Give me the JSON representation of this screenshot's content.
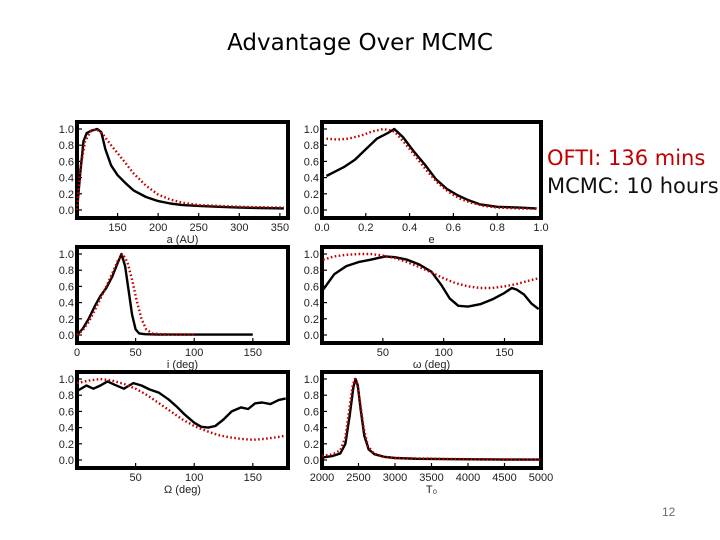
{
  "slide": {
    "title": "Advantage Over MCMC",
    "ofti_time": "OFTI: 136 mins",
    "mcmc_time": "MCMC: 10 hours",
    "page_number": "12"
  },
  "colors": {
    "mcmc": "#000000",
    "ofti": "#c00000"
  },
  "chart_data": [
    {
      "type": "line",
      "xlabel": "a (AU)",
      "xlim": [
        100,
        360
      ],
      "ylim": [
        0,
        1
      ],
      "xticks": [
        150,
        200,
        250,
        300,
        350
      ],
      "yticks": [
        "0.0",
        "0.2",
        "0.4",
        "0.6",
        "0.8",
        "1.0"
      ],
      "series": [
        {
          "style": "solid",
          "points": [
            [
              100,
              0
            ],
            [
              104,
              0.45
            ],
            [
              108,
              0.85
            ],
            [
              112,
              0.95
            ],
            [
              118,
              0.98
            ],
            [
              125,
              1.0
            ],
            [
              130,
              0.96
            ],
            [
              135,
              0.75
            ],
            [
              142,
              0.55
            ],
            [
              150,
              0.43
            ],
            [
              160,
              0.33
            ],
            [
              170,
              0.24
            ],
            [
              185,
              0.16
            ],
            [
              200,
              0.11
            ],
            [
              215,
              0.08
            ],
            [
              230,
              0.06
            ],
            [
              250,
              0.05
            ],
            [
              275,
              0.04
            ],
            [
              300,
              0.03
            ],
            [
              325,
              0.025
            ],
            [
              355,
              0.02
            ]
          ]
        },
        {
          "style": "dotted",
          "points": [
            [
              100,
              0
            ],
            [
              104,
              0.5
            ],
            [
              110,
              0.85
            ],
            [
              117,
              0.97
            ],
            [
              124,
              1.0
            ],
            [
              133,
              0.92
            ],
            [
              142,
              0.8
            ],
            [
              155,
              0.64
            ],
            [
              170,
              0.45
            ],
            [
              185,
              0.3
            ],
            [
              200,
              0.19
            ],
            [
              215,
              0.13
            ],
            [
              230,
              0.09
            ],
            [
              250,
              0.06
            ],
            [
              275,
              0.05
            ],
            [
              300,
              0.04
            ],
            [
              325,
              0.035
            ],
            [
              355,
              0.03
            ]
          ]
        }
      ]
    },
    {
      "type": "line",
      "xlabel": "e",
      "xlim": [
        0,
        1
      ],
      "ylim": [
        0,
        1
      ],
      "xticks": [
        "0.0",
        "0.2",
        "0.4",
        "0.6",
        "0.8",
        "1.0"
      ],
      "yticks": [
        "0.0",
        "0.2",
        "0.4",
        "0.6",
        "0.8",
        "1.0"
      ],
      "series": [
        {
          "style": "solid",
          "points": [
            [
              0.02,
              0.42
            ],
            [
              0.05,
              0.46
            ],
            [
              0.1,
              0.53
            ],
            [
              0.15,
              0.62
            ],
            [
              0.2,
              0.75
            ],
            [
              0.25,
              0.88
            ],
            [
              0.3,
              0.95
            ],
            [
              0.33,
              1.0
            ],
            [
              0.37,
              0.9
            ],
            [
              0.42,
              0.72
            ],
            [
              0.47,
              0.56
            ],
            [
              0.52,
              0.38
            ],
            [
              0.57,
              0.26
            ],
            [
              0.62,
              0.18
            ],
            [
              0.67,
              0.12
            ],
            [
              0.72,
              0.07
            ],
            [
              0.8,
              0.04
            ],
            [
              0.9,
              0.03
            ],
            [
              0.98,
              0.02
            ]
          ]
        },
        {
          "style": "dotted",
          "points": [
            [
              0.02,
              0.88
            ],
            [
              0.07,
              0.87
            ],
            [
              0.12,
              0.88
            ],
            [
              0.18,
              0.92
            ],
            [
              0.23,
              0.97
            ],
            [
              0.28,
              1.0
            ],
            [
              0.33,
              0.97
            ],
            [
              0.38,
              0.82
            ],
            [
              0.43,
              0.65
            ],
            [
              0.48,
              0.48
            ],
            [
              0.53,
              0.33
            ],
            [
              0.58,
              0.22
            ],
            [
              0.63,
              0.14
            ],
            [
              0.68,
              0.09
            ],
            [
              0.74,
              0.05
            ],
            [
              0.8,
              0.03
            ],
            [
              0.9,
              0.02
            ],
            [
              0.98,
              0.015
            ]
          ]
        }
      ]
    },
    {
      "type": "line",
      "xlabel": "i (deg)",
      "xlim": [
        0,
        180
      ],
      "ylim": [
        0,
        1
      ],
      "xticks": [
        0,
        50,
        100,
        150
      ],
      "yticks": [
        "0.0",
        "0.2",
        "0.4",
        "0.6",
        "0.8",
        "1.0"
      ],
      "series": [
        {
          "style": "solid",
          "points": [
            [
              0,
              0
            ],
            [
              5,
              0.08
            ],
            [
              10,
              0.2
            ],
            [
              15,
              0.35
            ],
            [
              20,
              0.48
            ],
            [
              25,
              0.58
            ],
            [
              30,
              0.72
            ],
            [
              35,
              0.9
            ],
            [
              38,
              1.0
            ],
            [
              41,
              0.85
            ],
            [
              44,
              0.55
            ],
            [
              47,
              0.25
            ],
            [
              50,
              0.07
            ],
            [
              53,
              0.02
            ],
            [
              58,
              0.01
            ],
            [
              70,
              0.005
            ],
            [
              100,
              0.005
            ],
            [
              150,
              0.005
            ]
          ]
        },
        {
          "style": "dotted",
          "points": [
            [
              0,
              0
            ],
            [
              5,
              0.06
            ],
            [
              10,
              0.16
            ],
            [
              15,
              0.3
            ],
            [
              20,
              0.45
            ],
            [
              25,
              0.6
            ],
            [
              30,
              0.76
            ],
            [
              35,
              0.92
            ],
            [
              39,
              1.0
            ],
            [
              43,
              0.9
            ],
            [
              47,
              0.68
            ],
            [
              51,
              0.42
            ],
            [
              55,
              0.2
            ],
            [
              59,
              0.07
            ],
            [
              64,
              0.02
            ],
            [
              72,
              0.01
            ],
            [
              100,
              0.005
            ]
          ]
        }
      ]
    },
    {
      "type": "line",
      "xlabel": "ω (deg)",
      "xlim": [
        0,
        180
      ],
      "ylim": [
        0,
        1
      ],
      "xticks": [
        50,
        100,
        150
      ],
      "yticks": [
        "0.0",
        "0.2",
        "0.4",
        "0.6",
        "0.8",
        "1.0"
      ],
      "series": [
        {
          "style": "solid",
          "points": [
            [
              1,
              0.56
            ],
            [
              10,
              0.75
            ],
            [
              20,
              0.85
            ],
            [
              30,
              0.9
            ],
            [
              40,
              0.93
            ],
            [
              52,
              0.97
            ],
            [
              60,
              0.96
            ],
            [
              70,
              0.93
            ],
            [
              80,
              0.87
            ],
            [
              90,
              0.78
            ],
            [
              98,
              0.62
            ],
            [
              105,
              0.45
            ],
            [
              112,
              0.36
            ],
            [
              120,
              0.35
            ],
            [
              130,
              0.38
            ],
            [
              140,
              0.44
            ],
            [
              150,
              0.52
            ],
            [
              156,
              0.58
            ],
            [
              160,
              0.56
            ],
            [
              166,
              0.5
            ],
            [
              172,
              0.39
            ],
            [
              178,
              0.32
            ]
          ]
        },
        {
          "style": "dotted",
          "points": [
            [
              1,
              0.93
            ],
            [
              10,
              0.97
            ],
            [
              20,
              0.99
            ],
            [
              30,
              1.0
            ],
            [
              40,
              1.0
            ],
            [
              50,
              0.98
            ],
            [
              60,
              0.95
            ],
            [
              70,
              0.9
            ],
            [
              80,
              0.84
            ],
            [
              90,
              0.77
            ],
            [
              100,
              0.7
            ],
            [
              110,
              0.64
            ],
            [
              120,
              0.6
            ],
            [
              130,
              0.58
            ],
            [
              140,
              0.58
            ],
            [
              150,
              0.6
            ],
            [
              160,
              0.63
            ],
            [
              170,
              0.67
            ],
            [
              178,
              0.7
            ]
          ]
        }
      ]
    },
    {
      "type": "line",
      "xlabel": "Ω (deg)",
      "xlim": [
        0,
        180
      ],
      "ylim": [
        0,
        1
      ],
      "xticks": [
        50,
        100,
        150
      ],
      "yticks": [
        "0.0",
        "0.2",
        "0.4",
        "0.6",
        "0.8",
        "1.0"
      ],
      "series": [
        {
          "style": "solid",
          "points": [
            [
              0,
              0.85
            ],
            [
              8,
              0.92
            ],
            [
              14,
              0.88
            ],
            [
              20,
              0.92
            ],
            [
              26,
              0.97
            ],
            [
              32,
              0.93
            ],
            [
              40,
              0.88
            ],
            [
              48,
              0.95
            ],
            [
              55,
              0.92
            ],
            [
              62,
              0.87
            ],
            [
              70,
              0.83
            ],
            [
              78,
              0.75
            ],
            [
              85,
              0.66
            ],
            [
              92,
              0.56
            ],
            [
              100,
              0.46
            ],
            [
              106,
              0.41
            ],
            [
              112,
              0.4
            ],
            [
              118,
              0.42
            ],
            [
              125,
              0.5
            ],
            [
              132,
              0.6
            ],
            [
              140,
              0.65
            ],
            [
              146,
              0.63
            ],
            [
              152,
              0.7
            ],
            [
              158,
              0.71
            ],
            [
              165,
              0.69
            ],
            [
              172,
              0.74
            ],
            [
              178,
              0.76
            ]
          ]
        },
        {
          "style": "dotted",
          "points": [
            [
              0,
              0.95
            ],
            [
              10,
              0.98
            ],
            [
              20,
              1.0
            ],
            [
              30,
              0.98
            ],
            [
              40,
              0.94
            ],
            [
              50,
              0.88
            ],
            [
              60,
              0.8
            ],
            [
              70,
              0.7
            ],
            [
              80,
              0.6
            ],
            [
              90,
              0.5
            ],
            [
              100,
              0.42
            ],
            [
              110,
              0.36
            ],
            [
              120,
              0.31
            ],
            [
              130,
              0.28
            ],
            [
              140,
              0.26
            ],
            [
              150,
              0.25
            ],
            [
              160,
              0.26
            ],
            [
              170,
              0.28
            ],
            [
              178,
              0.3
            ]
          ]
        }
      ]
    },
    {
      "type": "line",
      "xlabel": "T₀",
      "xlim": [
        2000,
        5000
      ],
      "ylim": [
        0,
        1
      ],
      "xticks": [
        2000,
        2500,
        3000,
        3500,
        4000,
        4500,
        5000
      ],
      "yticks": [
        "0.0",
        "0.2",
        "0.4",
        "0.6",
        "0.8",
        "1.0"
      ],
      "series": [
        {
          "style": "solid",
          "points": [
            [
              2000,
              0.03
            ],
            [
              2150,
              0.05
            ],
            [
              2250,
              0.08
            ],
            [
              2320,
              0.2
            ],
            [
              2380,
              0.55
            ],
            [
              2430,
              0.9
            ],
            [
              2460,
              1.0
            ],
            [
              2490,
              0.92
            ],
            [
              2530,
              0.62
            ],
            [
              2580,
              0.3
            ],
            [
              2640,
              0.13
            ],
            [
              2720,
              0.07
            ],
            [
              2850,
              0.04
            ],
            [
              3000,
              0.025
            ],
            [
              3300,
              0.015
            ],
            [
              3800,
              0.01
            ],
            [
              4500,
              0.005
            ],
            [
              5000,
              0.005
            ]
          ]
        },
        {
          "style": "dotted",
          "points": [
            [
              2000,
              0.05
            ],
            [
              2150,
              0.07
            ],
            [
              2250,
              0.12
            ],
            [
              2320,
              0.28
            ],
            [
              2370,
              0.6
            ],
            [
              2420,
              0.92
            ],
            [
              2450,
              1.0
            ],
            [
              2480,
              0.95
            ],
            [
              2520,
              0.72
            ],
            [
              2570,
              0.4
            ],
            [
              2630,
              0.17
            ],
            [
              2710,
              0.08
            ],
            [
              2850,
              0.04
            ],
            [
              3000,
              0.025
            ],
            [
              3300,
              0.02
            ],
            [
              3800,
              0.012
            ],
            [
              4500,
              0.008
            ],
            [
              5000,
              0.005
            ]
          ]
        }
      ]
    }
  ]
}
